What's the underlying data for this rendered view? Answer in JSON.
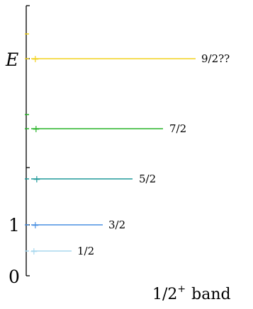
{
  "axis": {
    "label_zero": "0",
    "label_one": "1",
    "label_E": "E"
  },
  "levels": [
    {
      "spin": "1/2",
      "parity_mark": "+",
      "color": "#a8d8ee"
    },
    {
      "spin": "3/2",
      "parity_mark": "+",
      "color": "#4a90e2"
    },
    {
      "spin": "5/2",
      "parity_mark": "+",
      "color": "#1f9a9a"
    },
    {
      "spin": "7/2",
      "parity_mark": "+",
      "color": "#27b427"
    },
    {
      "spin": "9/2??",
      "parity_mark": "+",
      "color": "#f2d21b"
    }
  ],
  "caption": {
    "spin": "1/2",
    "parity": "+",
    "word": "band"
  }
}
